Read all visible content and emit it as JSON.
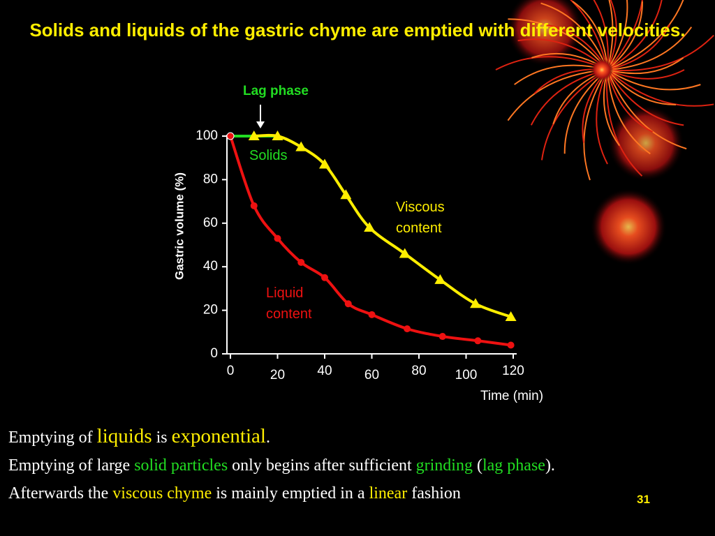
{
  "chart_data": {
    "type": "line",
    "title": "Solids and liquids of the gastric chyme are emptied with different velocities.",
    "x_label": "Time (min)",
    "y_label": "Gastric volume (%)",
    "xlim": [
      0,
      120
    ],
    "xticks": [
      0,
      20,
      40,
      60,
      80,
      100,
      120
    ],
    "ylim": [
      0,
      100
    ],
    "yticks": [
      0,
      20,
      40,
      60,
      80,
      100
    ],
    "series": [
      {
        "name": "Liquid content",
        "color": "#ee1111",
        "marker": "circle",
        "x": [
          0,
          10,
          20,
          30,
          40,
          50,
          60,
          75,
          90,
          105,
          119
        ],
        "values": [
          100,
          68,
          53,
          42,
          35,
          23,
          18,
          11.5,
          8,
          6,
          4
        ]
      },
      {
        "name": "Viscous content",
        "color": "#ffee00",
        "marker": "triangle",
        "x": [
          10,
          20,
          30,
          40,
          49,
          59,
          74,
          89,
          104,
          119
        ],
        "values": [
          100,
          100,
          95,
          87,
          73,
          58,
          46,
          34,
          23,
          17
        ]
      }
    ],
    "annotations": [
      {
        "text": "Solids",
        "color": "#22dd22"
      }
    ],
    "lag_phase": {
      "label": "Lag phase",
      "x": [
        0,
        20
      ],
      "y": 100,
      "color": "#22dd22"
    }
  },
  "slide": {
    "paragraphs": [
      [
        {
          "text": "Emptying of "
        },
        {
          "text": "liquids",
          "color": "#ffee00",
          "large": true
        },
        {
          "text": " is "
        },
        {
          "text": "exponential",
          "color": "#ffee00",
          "large": true
        },
        {
          "text": "."
        }
      ],
      [
        {
          "text": "Emptying of large "
        },
        {
          "text": "solid particles",
          "color": "#22dd22"
        },
        {
          "text": " only begins after sufficient "
        },
        {
          "text": "grinding",
          "color": "#22dd22"
        },
        {
          "text": " ("
        },
        {
          "text": "lag phase",
          "color": "#22dd22"
        },
        {
          "text": ")."
        }
      ],
      [
        {
          "text": "Afterwards the "
        },
        {
          "text": "viscous chyme",
          "color": "#ffee00"
        },
        {
          "text": " is mainly emptied in a "
        },
        {
          "text": "linear",
          "color": "#ffee00"
        },
        {
          "text": " fashion"
        }
      ]
    ],
    "page_number": "31"
  }
}
